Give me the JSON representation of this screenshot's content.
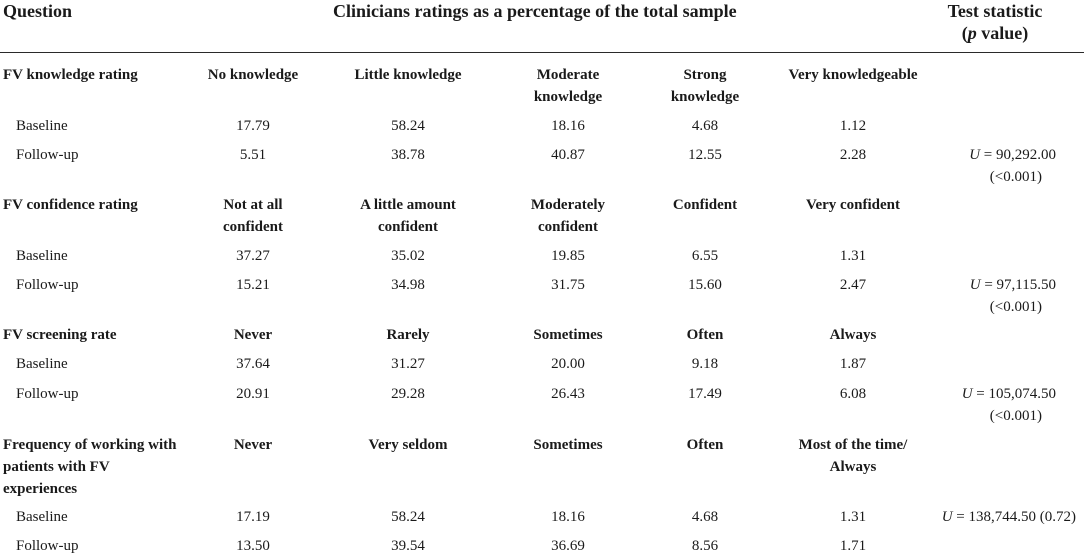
{
  "header": {
    "question": "Question",
    "ratings": "Clinicians ratings as a percentage of the total sample",
    "stat_line1": "Test statistic",
    "stat_p": "p",
    "stat_value": " value)",
    "stat_open": "("
  },
  "sections": [
    {
      "question": [
        "FV knowledge rating"
      ],
      "scale": [
        [
          "No knowledge"
        ],
        [
          "Little knowledge"
        ],
        [
          "Moderate",
          "knowledge"
        ],
        [
          "Strong",
          "knowledge"
        ],
        [
          "Very knowledgeable"
        ]
      ],
      "rows": [
        {
          "label": "Baseline",
          "values": [
            "17.79",
            "58.24",
            "18.16",
            "4.68",
            "1.12"
          ]
        },
        {
          "label": "Follow-up",
          "values": [
            "5.51",
            "38.78",
            "40.87",
            "12.55",
            "2.28"
          ]
        }
      ],
      "stat": {
        "u": "U",
        "value": " = 90,292.00",
        "p": "(<0.001)"
      }
    },
    {
      "question": [
        "FV confidence rating"
      ],
      "scale": [
        [
          "Not at all",
          "confident"
        ],
        [
          "A little amount",
          "confident"
        ],
        [
          "Moderately",
          "confident"
        ],
        [
          "Confident"
        ],
        [
          "Very confident"
        ]
      ],
      "rows": [
        {
          "label": "Baseline",
          "values": [
            "37.27",
            "35.02",
            "19.85",
            "6.55",
            "1.31"
          ]
        },
        {
          "label": "Follow-up",
          "values": [
            "15.21",
            "34.98",
            "31.75",
            "15.60",
            "2.47"
          ]
        }
      ],
      "stat": {
        "u": "U",
        "value": " = 97,115.50",
        "p": "(<0.001)"
      }
    },
    {
      "question": [
        "FV screening rate"
      ],
      "scale": [
        [
          "Never"
        ],
        [
          "Rarely"
        ],
        [
          "Sometimes"
        ],
        [
          "Often"
        ],
        [
          "Always"
        ]
      ],
      "rows": [
        {
          "label": "Baseline",
          "values": [
            "37.64",
            "31.27",
            "20.00",
            "9.18",
            "1.87"
          ]
        },
        {
          "label": "Follow-up",
          "values": [
            "20.91",
            "29.28",
            "26.43",
            "17.49",
            "6.08"
          ]
        }
      ],
      "stat": {
        "u": "U",
        "value": " = 105,074.50",
        "p": "(<0.001)"
      }
    },
    {
      "question": [
        "Frequency of working with",
        "patients with FV",
        "experiences"
      ],
      "scale": [
        [
          "Never"
        ],
        [
          "Very seldom"
        ],
        [
          "Sometimes"
        ],
        [
          "Often"
        ],
        [
          "Most of the time/",
          "Always"
        ]
      ],
      "rows": [
        {
          "label": "Baseline",
          "values": [
            "17.19",
            "58.24",
            "18.16",
            "4.68",
            "1.31"
          ]
        },
        {
          "label": "Follow-up",
          "values": [
            "13.50",
            "39.54",
            "36.69",
            "8.56",
            "1.71"
          ]
        }
      ],
      "stat": {
        "u": "U",
        "value": " = 138,744.50 (0.72)",
        "p": ""
      }
    }
  ]
}
